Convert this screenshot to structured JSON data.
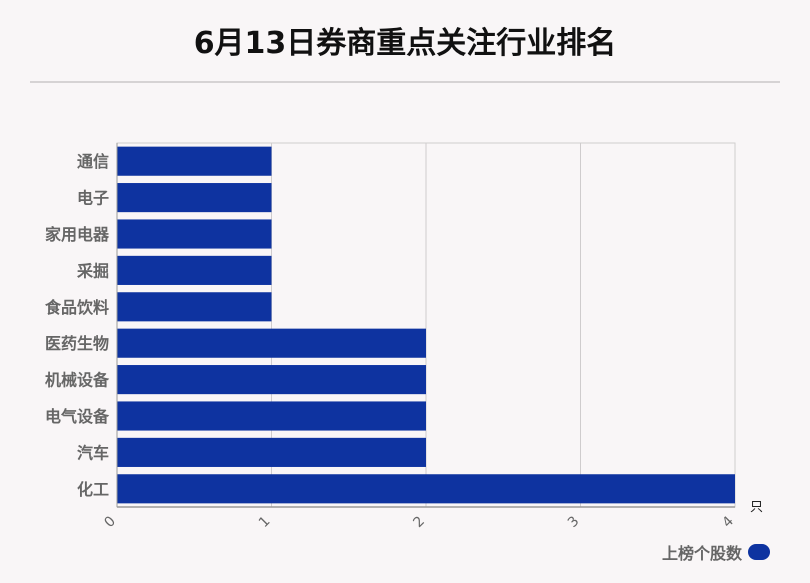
{
  "chart_data": {
    "type": "bar",
    "orientation": "horizontal",
    "title": "6月13日券商重点关注行业排名",
    "categories": [
      "通信",
      "电子",
      "家用电器",
      "采掘",
      "食品饮料",
      "医药生物",
      "机械设备",
      "电气设备",
      "汽车",
      "化工"
    ],
    "series": [
      {
        "name": "上榜个股数",
        "values": [
          1,
          1,
          1,
          1,
          1,
          2,
          2,
          2,
          2,
          4
        ]
      }
    ],
    "xlim": [
      0,
      4
    ],
    "xticks": [
      "0",
      "1",
      "2",
      "3",
      "4"
    ],
    "xunit": "只",
    "grid": true,
    "legend": "bottom-right",
    "bar_color": "#0e33a0"
  }
}
